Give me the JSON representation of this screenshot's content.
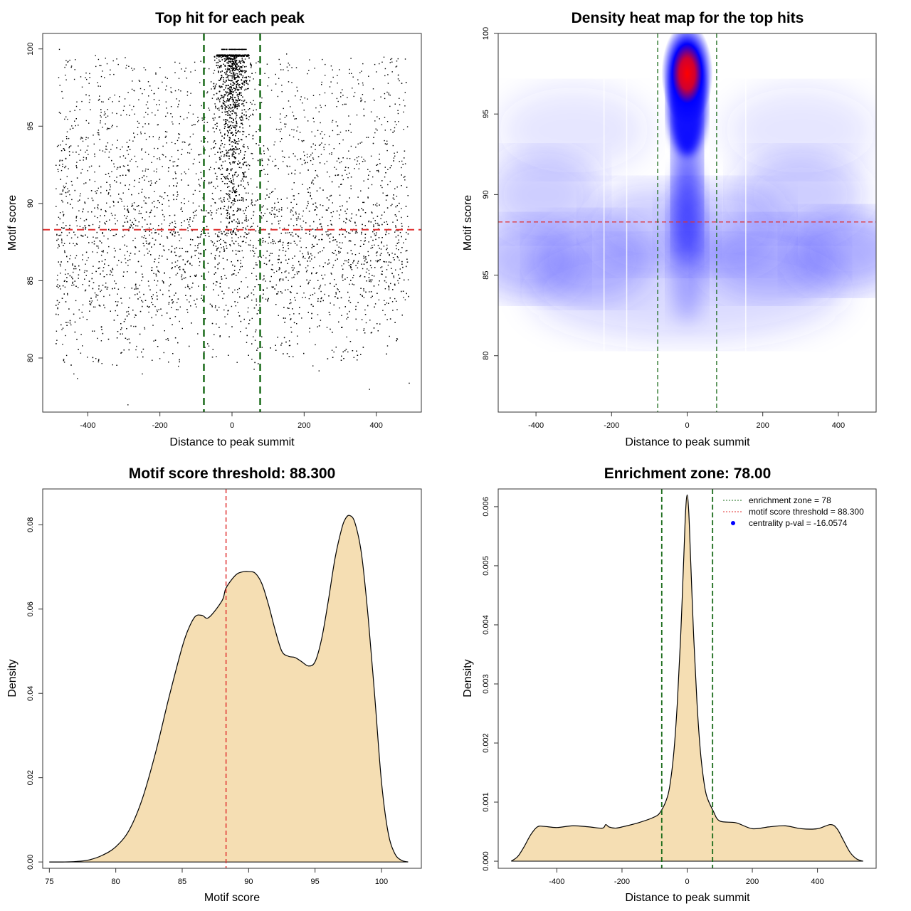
{
  "colors": {
    "threshold": "#e03030",
    "zone": "#1a6b1a",
    "fill": "#f5deb3",
    "points": "#000000",
    "heat_low": "#ffffff",
    "heat_mid": "#0000ff",
    "heat_high": "#ff0000",
    "legend_point": "#0000ff"
  },
  "chart_data": [
    {
      "type": "scatter",
      "title": "Top hit for each peak",
      "xlabel": "Distance to peak summit",
      "ylabel": "Motif score",
      "xlim": [
        -525,
        525
      ],
      "ylim": [
        76.5,
        101
      ],
      "xticks": [
        -400,
        -200,
        0,
        200,
        400
      ],
      "xtick_labels": [
        "-400",
        "-200",
        "0",
        "200",
        "400"
      ],
      "yticks": [
        80,
        85,
        90,
        95,
        100
      ],
      "ytick_labels": [
        "80",
        "85",
        "90",
        "95",
        "100"
      ],
      "threshold": 88.3,
      "zone": [
        -78,
        78
      ],
      "points": [
        [
          -290,
          77.0
        ],
        [
          -250,
          79.0
        ],
        [
          -460,
          80.2
        ],
        [
          -440,
          79.0
        ],
        [
          -430,
          78.7
        ],
        [
          240,
          79.2
        ],
        [
          380,
          78.0
        ],
        [
          490,
          78.4
        ],
        [
          -150,
          79.5
        ],
        [
          60,
          79.3
        ],
        [
          -480,
          100.0
        ],
        [
          -380,
          99.6
        ],
        [
          150,
          99.7
        ],
        [
          420,
          99.5
        ]
      ]
    },
    {
      "type": "heatmap",
      "title": "Density heat map for the top hits",
      "xlabel": "Distance to peak summit",
      "ylabel": "Motif score",
      "xlim": [
        -500,
        500
      ],
      "ylim": [
        76.5,
        100
      ],
      "xticks": [
        -400,
        -200,
        0,
        200,
        400
      ],
      "xtick_labels": [
        "-400",
        "-200",
        "0",
        "200",
        "400"
      ],
      "yticks": [
        80,
        85,
        90,
        95,
        100
      ],
      "ytick_labels": [
        "80",
        "85",
        "90",
        "95",
        "100"
      ],
      "threshold": 88.3,
      "zone": [
        -78,
        78
      ],
      "hotspot": {
        "x": 0,
        "y": 97.5
      }
    },
    {
      "type": "area",
      "title": "Motif score threshold: 88.300",
      "xlabel": "Motif score",
      "ylabel": "Density",
      "xlim": [
        74.5,
        103
      ],
      "ylim": [
        -0.0015,
        0.0885
      ],
      "xticks": [
        75,
        80,
        85,
        90,
        95,
        100
      ],
      "xtick_labels": [
        "75",
        "80",
        "85",
        "90",
        "95",
        "100"
      ],
      "yticks": [
        0,
        0.02,
        0.04,
        0.06,
        0.08
      ],
      "ytick_labels": [
        "0.00",
        "0.02",
        "0.04",
        "0.06",
        "0.08"
      ],
      "threshold": 88.3,
      "x": [
        75,
        76,
        77,
        78,
        79,
        80,
        81,
        82,
        83,
        84,
        85,
        85.5,
        86,
        86.5,
        87,
        88,
        88.3,
        89,
        89.5,
        90,
        90.5,
        91,
        91.5,
        92,
        92.5,
        93,
        93.5,
        94,
        94.5,
        95,
        95.5,
        96,
        96.5,
        97,
        97.3,
        97.6,
        98,
        98.5,
        99,
        99.5,
        100,
        100.5,
        101,
        101.5,
        102
      ],
      "y": [
        0.0,
        0.0,
        0.0001,
        0.0005,
        0.0016,
        0.0036,
        0.0075,
        0.015,
        0.026,
        0.039,
        0.051,
        0.0555,
        0.0583,
        0.0585,
        0.058,
        0.062,
        0.065,
        0.068,
        0.0688,
        0.0689,
        0.0685,
        0.066,
        0.061,
        0.055,
        0.05,
        0.0488,
        0.0485,
        0.0475,
        0.0465,
        0.0475,
        0.053,
        0.062,
        0.072,
        0.079,
        0.0815,
        0.0822,
        0.0805,
        0.073,
        0.058,
        0.039,
        0.019,
        0.007,
        0.002,
        0.0004,
        0.0
      ]
    },
    {
      "type": "area",
      "title": "Enrichment zone: 78.00",
      "xlabel": "Distance to peak summit",
      "ylabel": "Density",
      "xlim": [
        -580,
        580
      ],
      "ylim": [
        -0.00012,
        0.0063
      ],
      "xticks": [
        -400,
        -200,
        0,
        200,
        400
      ],
      "xtick_labels": [
        "-400",
        "-200",
        "0",
        "200",
        "400"
      ],
      "yticks": [
        0,
        0.001,
        0.002,
        0.003,
        0.004,
        0.005,
        0.006
      ],
      "ytick_labels": [
        "0.000",
        "0.001",
        "0.002",
        "0.003",
        "0.004",
        "0.005",
        "0.006"
      ],
      "zone": [
        -78,
        78
      ],
      "legend": [
        {
          "label": "enrichment zone = 78",
          "style": "dotted-line",
          "color": "#1a6b1a"
        },
        {
          "label": "motif score threshold = 88.300",
          "style": "dotted-line",
          "color": "#e03030"
        },
        {
          "label": "centrality p-val = -16.0574",
          "style": "point",
          "color": "#0000ff"
        }
      ],
      "x": [
        -540,
        -520,
        -500,
        -480,
        -460,
        -440,
        -400,
        -350,
        -300,
        -260,
        -250,
        -240,
        -220,
        -200,
        -150,
        -100,
        -80,
        -60,
        -50,
        -40,
        -30,
        -20,
        -10,
        -5,
        0,
        5,
        10,
        20,
        30,
        40,
        50,
        60,
        80,
        100,
        150,
        200,
        250,
        300,
        350,
        400,
        440,
        460,
        480,
        500,
        520,
        540
      ],
      "y": [
        0.0,
        8e-05,
        0.00025,
        0.00045,
        0.00058,
        0.00059,
        0.00057,
        0.0006,
        0.00058,
        0.00056,
        0.00062,
        0.00058,
        0.00056,
        0.00058,
        0.00065,
        0.00075,
        0.00085,
        0.0011,
        0.0014,
        0.0019,
        0.0027,
        0.0038,
        0.0052,
        0.0059,
        0.0062,
        0.0059,
        0.0052,
        0.0038,
        0.0027,
        0.0019,
        0.0014,
        0.0011,
        0.00085,
        0.00068,
        0.00065,
        0.00055,
        0.00058,
        0.0006,
        0.00055,
        0.00055,
        0.00062,
        0.00055,
        0.00035,
        0.00015,
        4e-05,
        0.0
      ]
    }
  ]
}
